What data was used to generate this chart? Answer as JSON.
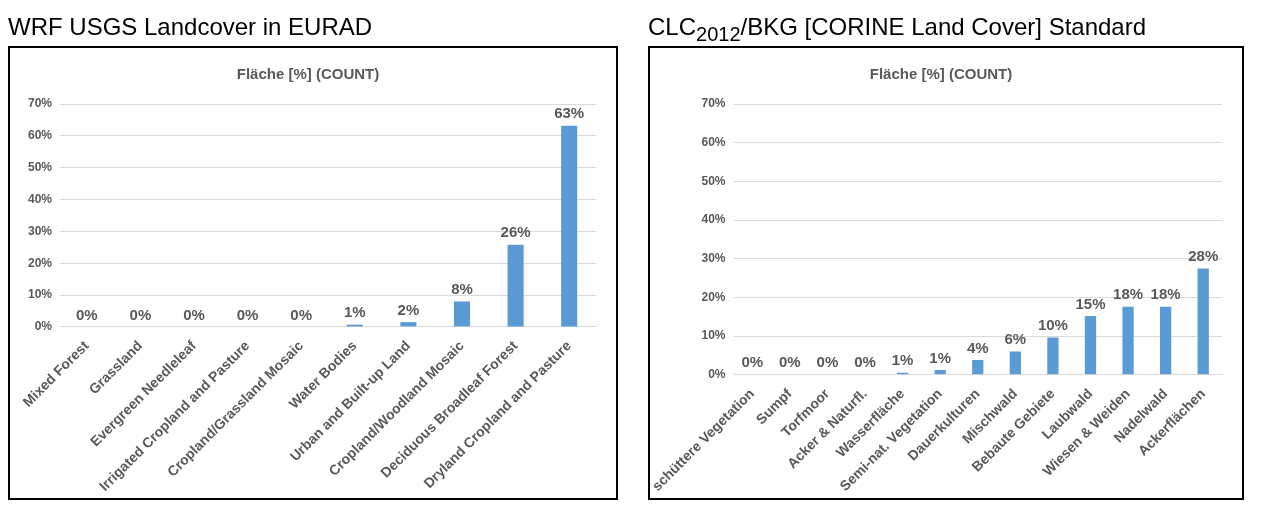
{
  "chart_data": [
    {
      "type": "bar",
      "title": "WRF USGS Landcover in EURAD",
      "subtitle": "Fläche [%] (COUNT)",
      "categories": [
        "Mixed Forest",
        "Grassland",
        "Evergreen Needleleaf",
        "Irrigated Cropland and Pasture",
        "Cropland/Grassland Mosaic",
        "Water Bodies",
        "Urban and Built-up Land",
        "Cropland/Woodland Mosaic",
        "Deciduous Broadleaf Forest",
        "Dryland Cropland and Pasture"
      ],
      "values": [
        0,
        0,
        0,
        0,
        0,
        0.7,
        1.5,
        8,
        25.8,
        63.2
      ],
      "value_labels": [
        "0%",
        "0%",
        "0%",
        "0%",
        "0%",
        "1%",
        "2%",
        "8%",
        "26%",
        "63%"
      ],
      "color": "#5b9bd5",
      "ylim": [
        0,
        70
      ],
      "yticks": [
        {
          "value": 0,
          "label": "0%"
        },
        {
          "value": 10,
          "label": "10%"
        },
        {
          "value": 20,
          "label": "20%"
        },
        {
          "value": 30,
          "label": "30%"
        },
        {
          "value": 40,
          "label": "40%"
        },
        {
          "value": 50,
          "label": "50%"
        },
        {
          "value": 60,
          "label": "60%"
        },
        {
          "value": 70,
          "label": "70%"
        }
      ],
      "grid": "y",
      "legend": false
    },
    {
      "type": "bar",
      "title": "CLC$_{2012}$/BKG [CORINE Land Cover] Standard",
      "subtitle": "Fläche [%] (COUNT)",
      "categories": [
        "schüttere Vegetation",
        "Sumpf",
        "Torfmoor",
        "Acker & Naturfl.",
        "Wasserfläche",
        "Semi-nat. Vegetation",
        "Dauerkulturen",
        "Mischwald",
        "Bebaute Gebiete",
        "Laubwald",
        "Wiesen & Weiden",
        "Nadelwald",
        "Ackerflächen"
      ],
      "values": [
        0,
        0,
        0,
        0,
        0.5,
        1.2,
        3.8,
        6,
        9.6,
        15.2,
        17.6,
        17.6,
        27.5
      ],
      "value_labels": [
        "0%",
        "0%",
        "0%",
        "0%",
        "1%",
        "1%",
        "4%",
        "6%",
        "10%",
        "15%",
        "18%",
        "18%",
        "28%"
      ],
      "color": "#5b9bd5",
      "ylim": [
        0,
        70
      ],
      "yticks": [
        {
          "value": 0,
          "label": "0%"
        },
        {
          "value": 10,
          "label": "10%"
        },
        {
          "value": 20,
          "label": "20%"
        },
        {
          "value": 30,
          "label": "30%"
        },
        {
          "value": 40,
          "label": "40%"
        },
        {
          "value": 50,
          "label": "50%"
        },
        {
          "value": 60,
          "label": "60%"
        },
        {
          "value": 70,
          "label": "70%"
        }
      ],
      "grid": "y",
      "legend": false
    }
  ]
}
